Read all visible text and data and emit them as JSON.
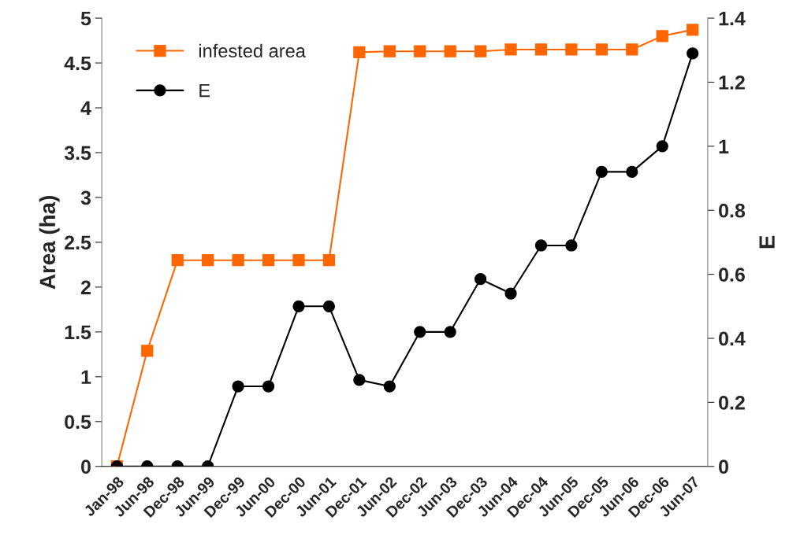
{
  "chart_data": {
    "type": "line",
    "categories": [
      "Jan-98",
      "Jun-98",
      "Dec-98",
      "Jun-99",
      "Dec-99",
      "Jun-00",
      "Dec-00",
      "Jun-01",
      "Dec-01",
      "Jun-02",
      "Dec-02",
      "Jun-03",
      "Dec-03",
      "Jun-04",
      "Dec-04",
      "Jun-05",
      "Dec-05",
      "Jun-06",
      "Dec-06",
      "Jun-07"
    ],
    "ylabel": "Area (ha)",
    "y2label": "E",
    "ylim": [
      0,
      5
    ],
    "yticks": [
      0,
      0.5,
      1,
      1.5,
      2,
      2.5,
      3,
      3.5,
      4,
      4.5,
      5
    ],
    "y2lim": [
      0,
      1.4
    ],
    "y2ticks": [
      0,
      0.2,
      0.4,
      0.6,
      0.8,
      1,
      1.2,
      1.4
    ],
    "series": [
      {
        "name": "infested area",
        "color": "#ff6600",
        "marker": "square",
        "values": [
          0,
          1.29,
          2.3,
          2.3,
          2.3,
          2.3,
          2.3,
          2.3,
          4.62,
          4.63,
          4.63,
          4.63,
          4.63,
          4.65,
          4.65,
          4.65,
          4.65,
          4.65,
          4.8,
          4.87
        ]
      },
      {
        "name": "E",
        "color": "#000000",
        "marker": "circle",
        "axis": "y2",
        "values": [
          0,
          0,
          0,
          0,
          0.25,
          0.25,
          0.5,
          0.5,
          0.27,
          0.25,
          0.42,
          0.42,
          0.585,
          0.54,
          0.69,
          0.69,
          0.92,
          0.92,
          1.0,
          1.29
        ]
      }
    ],
    "legend": "top left",
    "grid": false
  }
}
